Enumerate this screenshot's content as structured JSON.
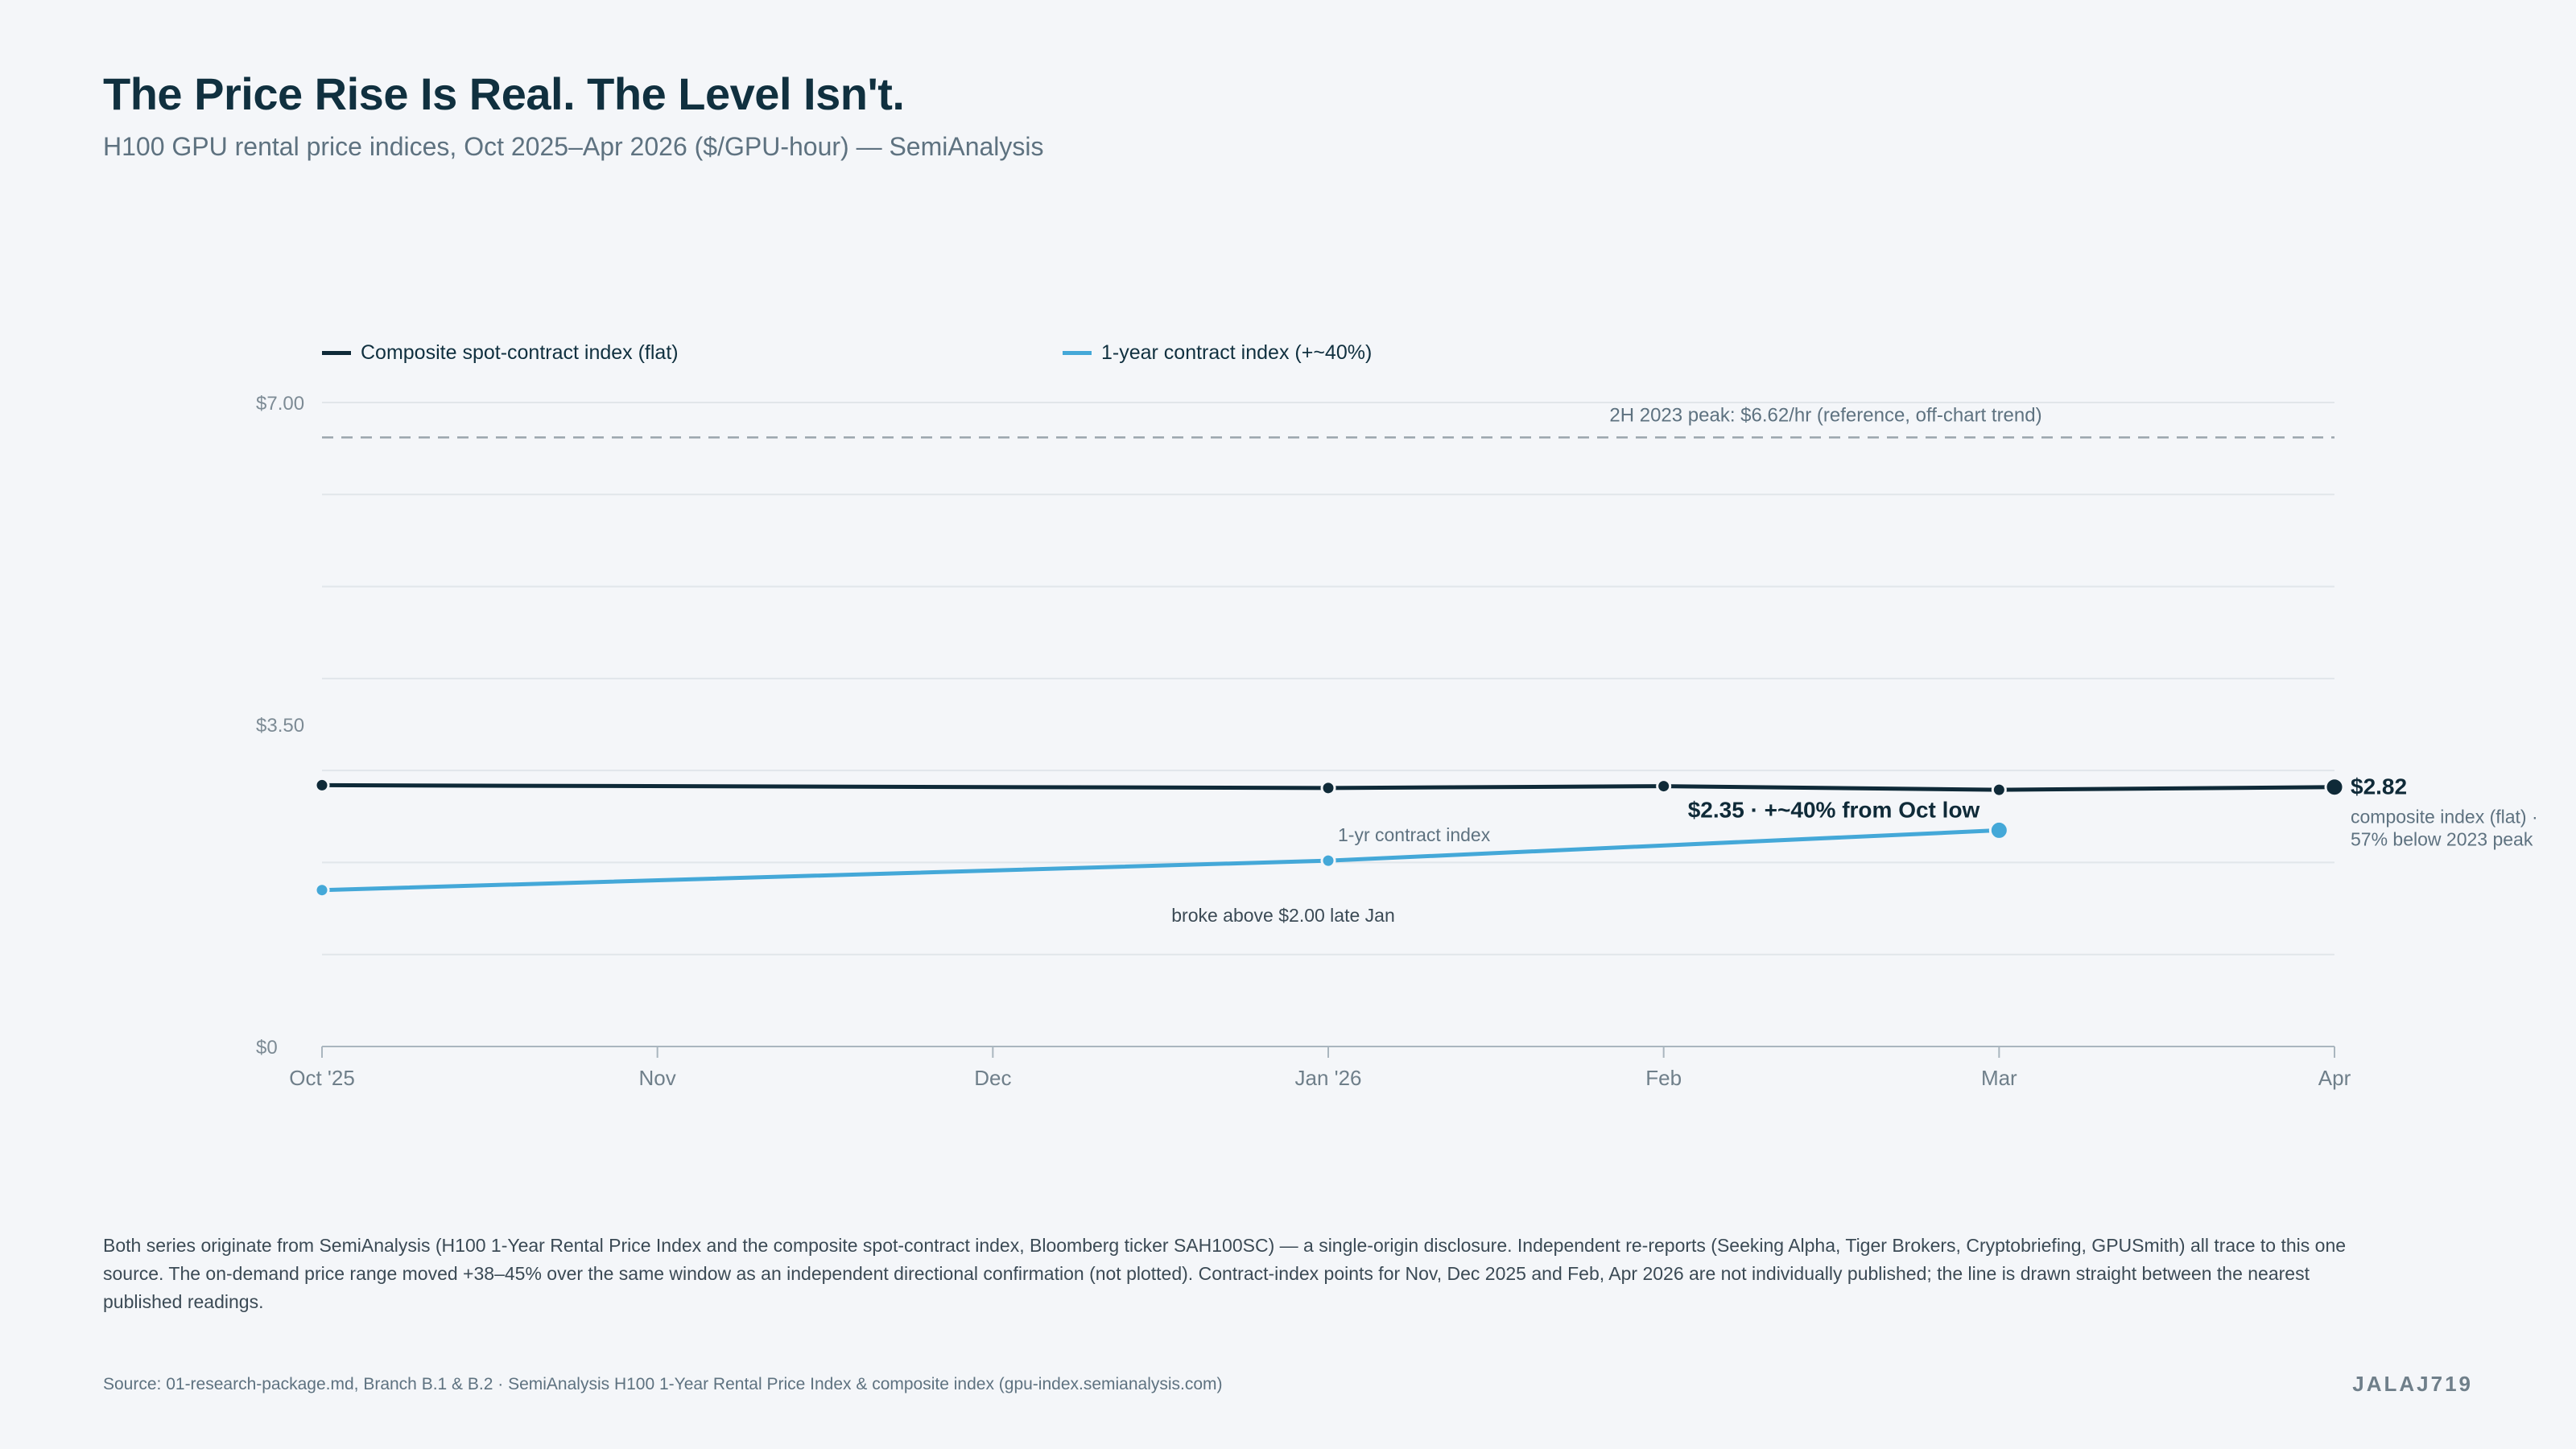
{
  "header": {
    "title": "The Price Rise Is Real. The Level Isn't.",
    "subtitle": "H100 GPU rental price indices, Oct 2025–Apr 2026 ($/GPU-hour) — SemiAnalysis"
  },
  "colors": {
    "composite": "#0f2a38",
    "contract": "#44a8d8",
    "reference": "#9aa5ad",
    "grid": "#e1e6ea",
    "axis": "#aab6bf"
  },
  "chart_data": {
    "type": "line",
    "x": [
      "Oct '25",
      "Nov",
      "Dec",
      "Jan '26",
      "Feb",
      "Mar",
      "Apr"
    ],
    "ylim": [
      0,
      7
    ],
    "y_ticks": [
      {
        "value": 0,
        "label": "$0"
      },
      {
        "value": 3.5,
        "label": "$3.50"
      },
      {
        "value": 7,
        "label": "$7.00"
      }
    ],
    "gridlines": [
      1,
      2,
      3,
      4,
      5,
      6,
      7
    ],
    "series": [
      {
        "name": "Composite spot-contract index (flat)",
        "points": [
          {
            "x": "Oct '25",
            "y": 2.84
          },
          {
            "x": "Jan '26",
            "y": 2.81
          },
          {
            "x": "Feb",
            "y": 2.83
          },
          {
            "x": "Mar",
            "y": 2.79
          },
          {
            "x": "Apr",
            "y": 2.82
          }
        ]
      },
      {
        "name": "1-year contract index (+~40%)",
        "points": [
          {
            "x": "Oct '25",
            "y": 1.7
          },
          {
            "x": "Jan '26",
            "y": 2.02
          },
          {
            "x": "Mar",
            "y": 2.35
          }
        ]
      }
    ],
    "reference_line": {
      "value": 6.62,
      "label": "2H 2023 peak: $6.62/hr (reference, off-chart trend)"
    },
    "annotations": {
      "composite_end_value": "$2.82",
      "composite_end_note_1": "composite index (flat) ·",
      "composite_end_note_2": "57% below 2023 peak",
      "contract_mar_label": "$2.35 · +~40% from Oct low",
      "contract_series_label": "1-yr contract index",
      "contract_jan_note": "broke above $2.00 late Jan"
    }
  },
  "footer": {
    "note": "Both series originate from SemiAnalysis (H100 1-Year Rental Price Index and the composite spot-contract index, Bloomberg ticker SAH100SC) — a single-origin disclosure. Independent re-reports (Seeking Alpha, Tiger Brokers, Cryptobriefing, GPUSmith) all trace to this one source. The on-demand price range moved +38–45% over the same window as an independent directional confirmation (not plotted). Contract-index points for Nov, Dec 2025 and Feb, Apr 2026 are not individually published; the line is drawn straight between the nearest published readings.",
    "source": "Source: 01-research-package.md, Branch B.1 & B.2 · SemiAnalysis H100 1-Year Rental Price Index & composite index (gpu-index.semianalysis.com)",
    "brand": "JALAJ719"
  }
}
